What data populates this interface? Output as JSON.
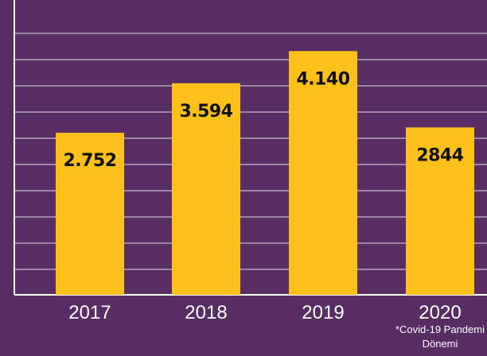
{
  "chart_data": {
    "type": "bar",
    "title": "",
    "xlabel": "",
    "ylabel": "",
    "categories": [
      "2017",
      "2018",
      "2019",
      "2020"
    ],
    "values": [
      2752,
      3594,
      4140,
      2844
    ],
    "value_labels": [
      "2.752",
      "3.594",
      "4.140",
      "2844"
    ],
    "ylim": [
      0,
      4900
    ],
    "grid": true,
    "legend": "none",
    "annotations": [
      {
        "category": "2020",
        "lines": [
          "*Covid-19 Pandemi",
          "Dönemi"
        ]
      }
    ]
  },
  "colors": {
    "background": "#572d63",
    "bar": "#fec01a",
    "axis": "#ffffff",
    "grid": "#ffffff",
    "label_text": "#111111",
    "tick_text": "#ffffff"
  }
}
